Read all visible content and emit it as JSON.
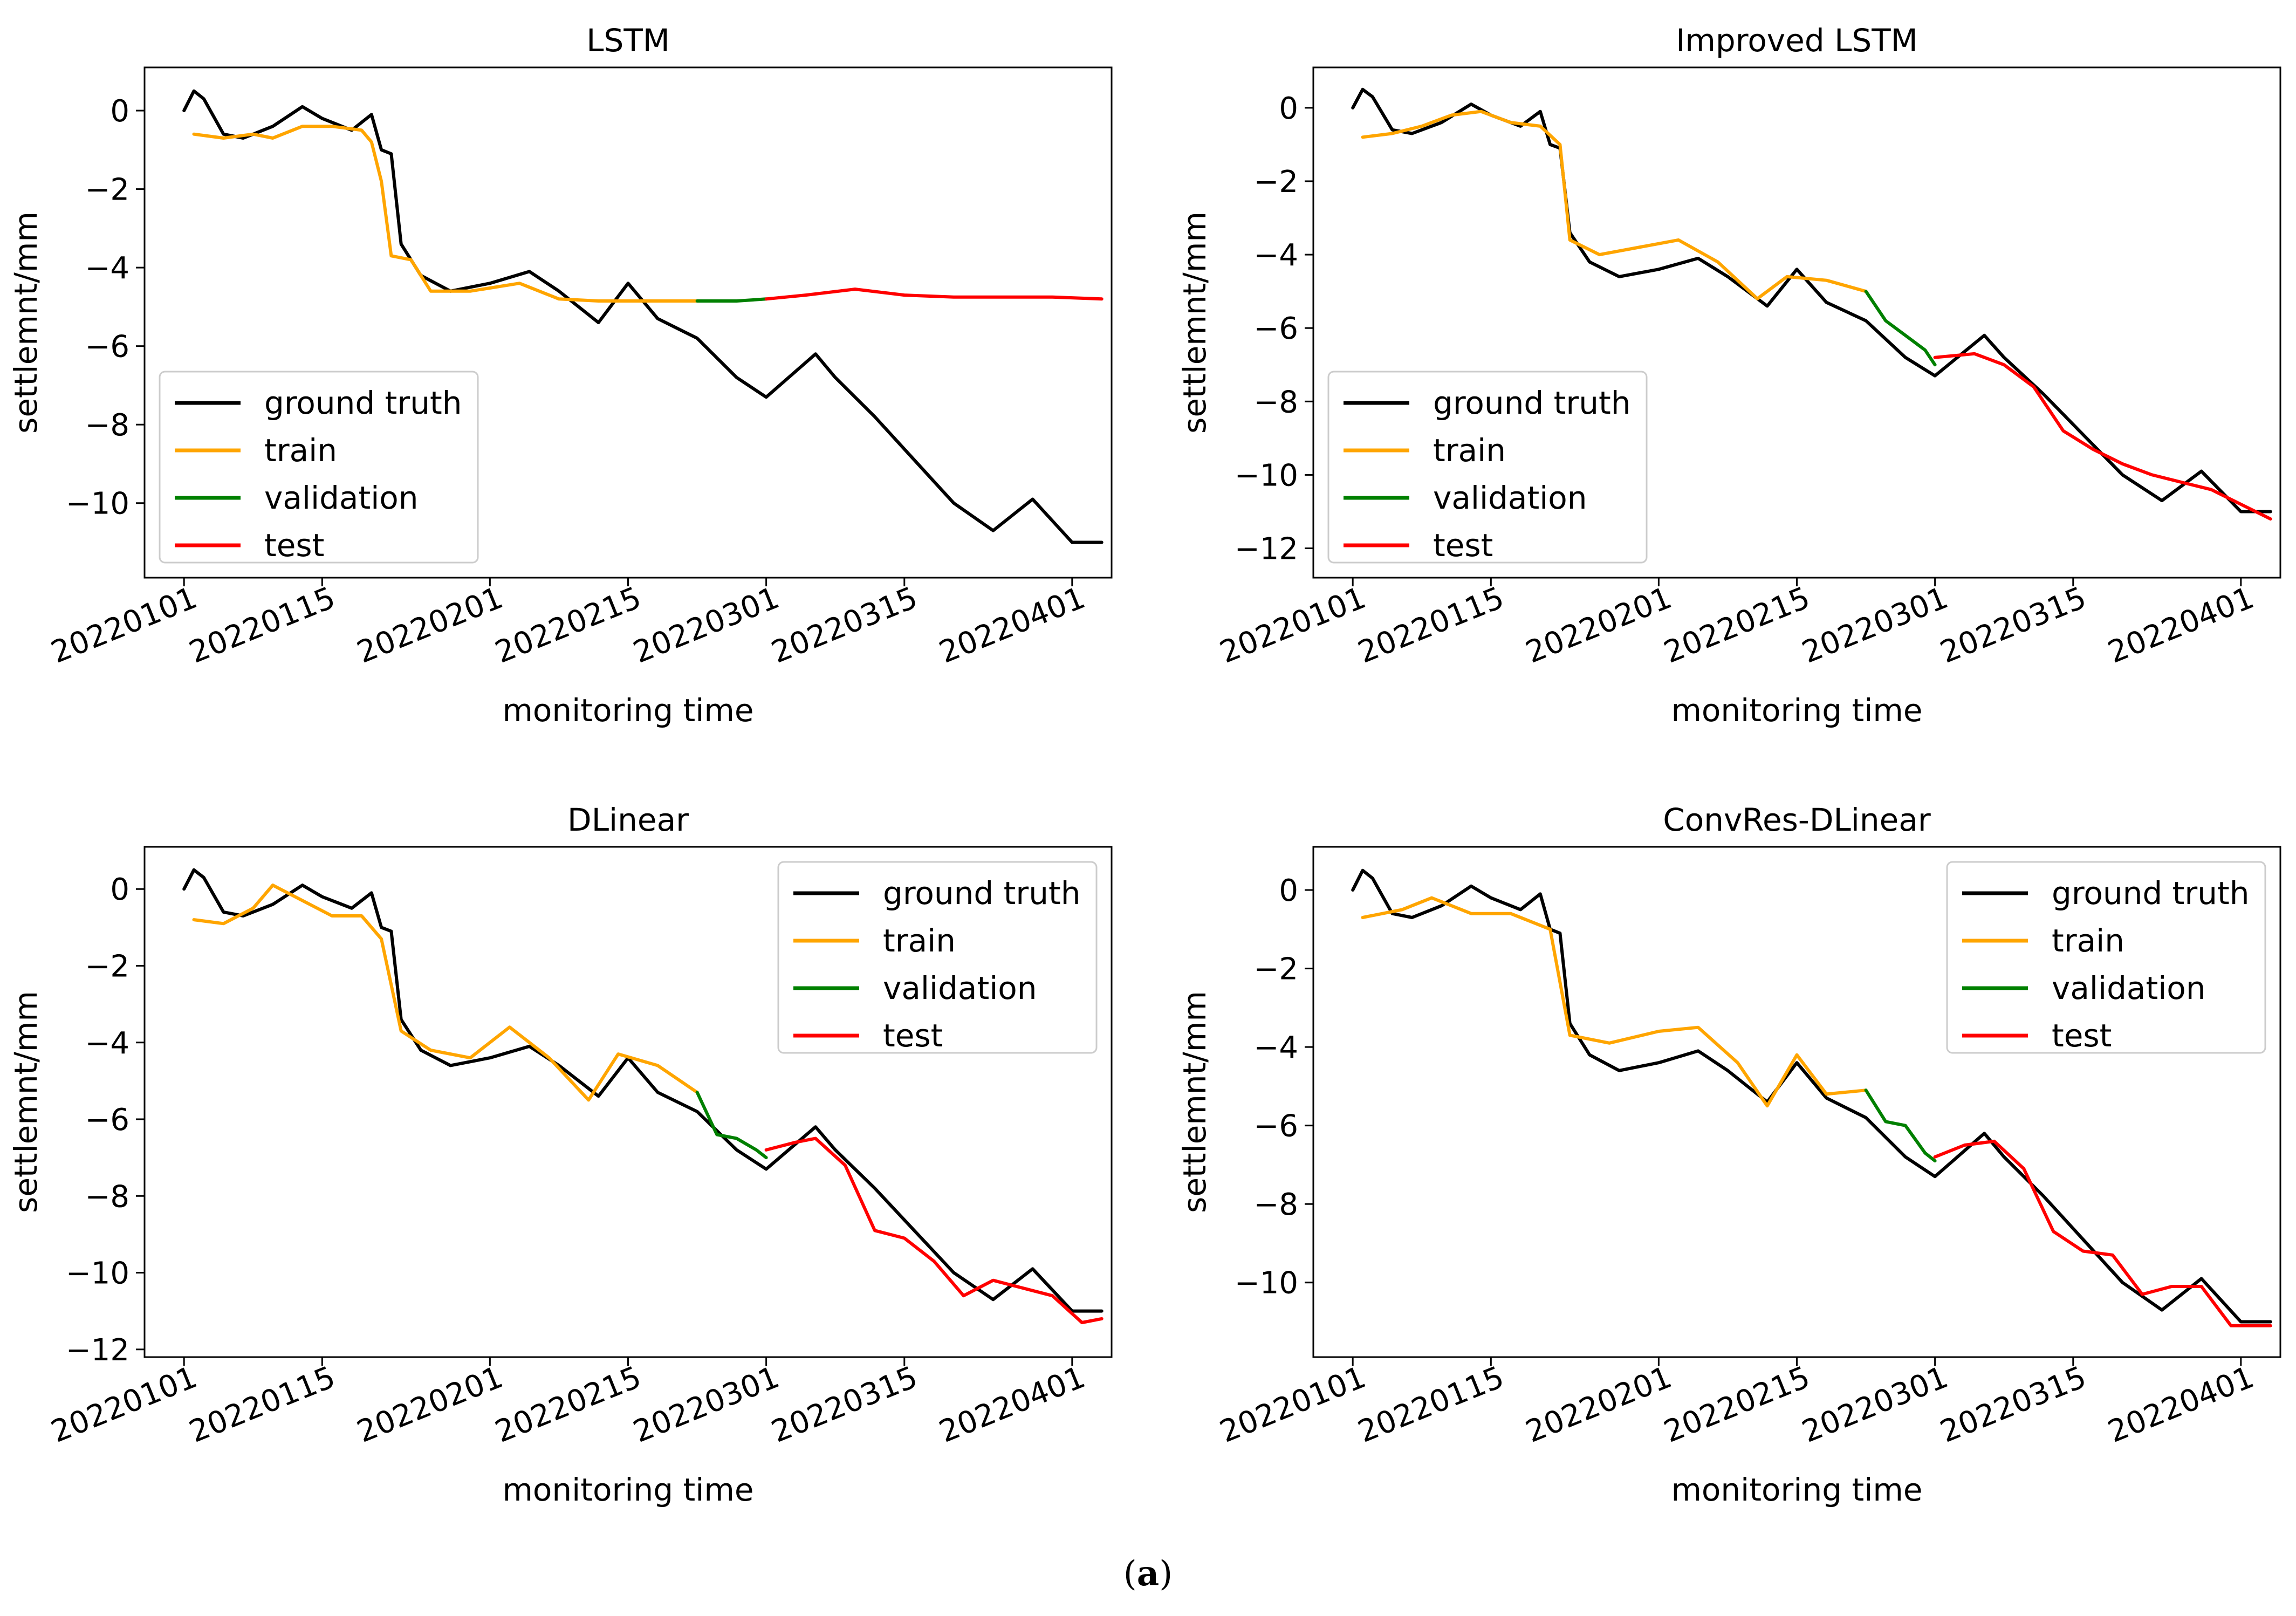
{
  "figure": {
    "caption_open": "(",
    "caption_label": "a",
    "caption_close": ")"
  },
  "chart_data": [
    {
      "type": "line",
      "title": "LSTM",
      "xlabel": "monitoring time",
      "ylabel": "settlemnt/mm",
      "x_tick_labels": [
        "20220101",
        "20220115",
        "20220201",
        "20220215",
        "20220301",
        "20220315",
        "20220401"
      ],
      "x_tick_dates": [
        "2022-01-01",
        "2022-01-15",
        "2022-02-01",
        "2022-02-15",
        "2022-03-01",
        "2022-03-15",
        "2022-04-01"
      ],
      "xlim": [
        "2021-12-28",
        "2022-04-05"
      ],
      "ylim": [
        -11.9,
        1.1
      ],
      "y_ticks": [
        0,
        -2,
        -4,
        -6,
        -8,
        -10
      ],
      "legend_position": "lower-left",
      "series": [
        {
          "name": "ground truth",
          "color": "#000000",
          "x": [
            "2022-01-01",
            "2022-01-02",
            "2022-01-03",
            "2022-01-05",
            "2022-01-07",
            "2022-01-10",
            "2022-01-13",
            "2022-01-15",
            "2022-01-18",
            "2022-01-20",
            "2022-01-21",
            "2022-01-22",
            "2022-01-23",
            "2022-01-25",
            "2022-01-28",
            "2022-02-01",
            "2022-02-05",
            "2022-02-08",
            "2022-02-12",
            "2022-02-15",
            "2022-02-18",
            "2022-02-22",
            "2022-02-26",
            "2022-03-01",
            "2022-03-06",
            "2022-03-08",
            "2022-03-12",
            "2022-03-16",
            "2022-03-20",
            "2022-03-24",
            "2022-03-28",
            "2022-04-01",
            "2022-04-04"
          ],
          "y": [
            0,
            0.5,
            0.3,
            -0.6,
            -0.7,
            -0.4,
            0.1,
            -0.2,
            -0.5,
            -0.1,
            -1.0,
            -1.1,
            -3.4,
            -4.2,
            -4.6,
            -4.4,
            -4.1,
            -4.6,
            -5.4,
            -4.4,
            -5.3,
            -5.8,
            -6.8,
            -7.3,
            -6.2,
            -6.8,
            -7.8,
            -8.9,
            -10.0,
            -10.7,
            -9.9,
            -11.0,
            -11.0
          ]
        },
        {
          "name": "train",
          "color": "#ffa500",
          "x": [
            "2022-01-02",
            "2022-01-05",
            "2022-01-08",
            "2022-01-10",
            "2022-01-13",
            "2022-01-16",
            "2022-01-19",
            "2022-01-20",
            "2022-01-21",
            "2022-01-22",
            "2022-01-24",
            "2022-01-26",
            "2022-01-30",
            "2022-02-04",
            "2022-02-08",
            "2022-02-12",
            "2022-02-18",
            "2022-02-22"
          ],
          "y": [
            -0.6,
            -0.7,
            -0.6,
            -0.7,
            -0.4,
            -0.4,
            -0.5,
            -0.8,
            -1.8,
            -3.7,
            -3.8,
            -4.6,
            -4.6,
            -4.4,
            -4.8,
            -4.85,
            -4.85,
            -4.85
          ]
        },
        {
          "name": "validation",
          "color": "#008000",
          "x": [
            "2022-02-22",
            "2022-02-26",
            "2022-03-01"
          ],
          "y": [
            -4.85,
            -4.85,
            -4.8
          ]
        },
        {
          "name": "test",
          "color": "#ff0000",
          "x": [
            "2022-03-01",
            "2022-03-05",
            "2022-03-10",
            "2022-03-15",
            "2022-03-20",
            "2022-03-25",
            "2022-03-30",
            "2022-04-04"
          ],
          "y": [
            -4.8,
            -4.7,
            -4.55,
            -4.7,
            -4.75,
            -4.75,
            -4.75,
            -4.8
          ]
        }
      ]
    },
    {
      "type": "line",
      "title": "Improved LSTM",
      "xlabel": "monitoring time",
      "ylabel": "settlemnt/mm",
      "x_tick_labels": [
        "20220101",
        "20220115",
        "20220201",
        "20220215",
        "20220301",
        "20220315",
        "20220401"
      ],
      "x_tick_dates": [
        "2022-01-01",
        "2022-01-15",
        "2022-02-01",
        "2022-02-15",
        "2022-03-01",
        "2022-03-15",
        "2022-04-01"
      ],
      "xlim": [
        "2021-12-28",
        "2022-04-05"
      ],
      "ylim": [
        -12.8,
        1.1
      ],
      "y_ticks": [
        0,
        -2,
        -4,
        -6,
        -8,
        -10,
        -12
      ],
      "legend_position": "lower-left",
      "series": [
        {
          "name": "ground truth",
          "color": "#000000",
          "x": [
            "2022-01-01",
            "2022-01-02",
            "2022-01-03",
            "2022-01-05",
            "2022-01-07",
            "2022-01-10",
            "2022-01-13",
            "2022-01-15",
            "2022-01-18",
            "2022-01-20",
            "2022-01-21",
            "2022-01-22",
            "2022-01-23",
            "2022-01-25",
            "2022-01-28",
            "2022-02-01",
            "2022-02-05",
            "2022-02-08",
            "2022-02-12",
            "2022-02-15",
            "2022-02-18",
            "2022-02-22",
            "2022-02-26",
            "2022-03-01",
            "2022-03-06",
            "2022-03-08",
            "2022-03-12",
            "2022-03-16",
            "2022-03-20",
            "2022-03-24",
            "2022-03-28",
            "2022-04-01",
            "2022-04-04"
          ],
          "y": [
            0,
            0.5,
            0.3,
            -0.6,
            -0.7,
            -0.4,
            0.1,
            -0.2,
            -0.5,
            -0.1,
            -1.0,
            -1.1,
            -3.4,
            -4.2,
            -4.6,
            -4.4,
            -4.1,
            -4.6,
            -5.4,
            -4.4,
            -5.3,
            -5.8,
            -6.8,
            -7.3,
            -6.2,
            -6.8,
            -7.8,
            -8.9,
            -10.0,
            -10.7,
            -9.9,
            -11.0,
            -11.0
          ]
        },
        {
          "name": "train",
          "color": "#ffa500",
          "x": [
            "2022-01-02",
            "2022-01-05",
            "2022-01-08",
            "2022-01-11",
            "2022-01-14",
            "2022-01-17",
            "2022-01-20",
            "2022-01-22",
            "2022-01-23",
            "2022-01-26",
            "2022-01-30",
            "2022-02-03",
            "2022-02-07",
            "2022-02-11",
            "2022-02-14",
            "2022-02-18",
            "2022-02-22"
          ],
          "y": [
            -0.8,
            -0.7,
            -0.5,
            -0.2,
            -0.1,
            -0.4,
            -0.5,
            -1.0,
            -3.6,
            -4.0,
            -3.8,
            -3.6,
            -4.2,
            -5.2,
            -4.6,
            -4.7,
            -5.0
          ]
        },
        {
          "name": "validation",
          "color": "#008000",
          "x": [
            "2022-02-22",
            "2022-02-24",
            "2022-02-26",
            "2022-02-28",
            "2022-03-01"
          ],
          "y": [
            -5.0,
            -5.8,
            -6.2,
            -6.6,
            -7.0
          ]
        },
        {
          "name": "test",
          "color": "#ff0000",
          "x": [
            "2022-03-01",
            "2022-03-05",
            "2022-03-08",
            "2022-03-11",
            "2022-03-14",
            "2022-03-17",
            "2022-03-20",
            "2022-03-23",
            "2022-03-26",
            "2022-03-29",
            "2022-04-01",
            "2022-04-04"
          ],
          "y": [
            -6.8,
            -6.7,
            -7.0,
            -7.6,
            -8.8,
            -9.3,
            -9.7,
            -10.0,
            -10.2,
            -10.4,
            -10.8,
            -11.2
          ]
        }
      ]
    },
    {
      "type": "line",
      "title": "DLinear",
      "xlabel": "monitoring time",
      "ylabel": "settlemnt/mm",
      "x_tick_labels": [
        "20220101",
        "20220115",
        "20220201",
        "20220215",
        "20220301",
        "20220315",
        "20220401"
      ],
      "x_tick_dates": [
        "2022-01-01",
        "2022-01-15",
        "2022-02-01",
        "2022-02-15",
        "2022-03-01",
        "2022-03-15",
        "2022-04-01"
      ],
      "xlim": [
        "2021-12-28",
        "2022-04-05"
      ],
      "ylim": [
        -12.2,
        1.1
      ],
      "y_ticks": [
        0,
        -2,
        -4,
        -6,
        -8,
        -10,
        -12
      ],
      "legend_position": "upper-right",
      "series": [
        {
          "name": "ground truth",
          "color": "#000000",
          "x": [
            "2022-01-01",
            "2022-01-02",
            "2022-01-03",
            "2022-01-05",
            "2022-01-07",
            "2022-01-10",
            "2022-01-13",
            "2022-01-15",
            "2022-01-18",
            "2022-01-20",
            "2022-01-21",
            "2022-01-22",
            "2022-01-23",
            "2022-01-25",
            "2022-01-28",
            "2022-02-01",
            "2022-02-05",
            "2022-02-08",
            "2022-02-12",
            "2022-02-15",
            "2022-02-18",
            "2022-02-22",
            "2022-02-26",
            "2022-03-01",
            "2022-03-06",
            "2022-03-08",
            "2022-03-12",
            "2022-03-16",
            "2022-03-20",
            "2022-03-24",
            "2022-03-28",
            "2022-04-01",
            "2022-04-04"
          ],
          "y": [
            0,
            0.5,
            0.3,
            -0.6,
            -0.7,
            -0.4,
            0.1,
            -0.2,
            -0.5,
            -0.1,
            -1.0,
            -1.1,
            -3.4,
            -4.2,
            -4.6,
            -4.4,
            -4.1,
            -4.6,
            -5.4,
            -4.4,
            -5.3,
            -5.8,
            -6.8,
            -7.3,
            -6.2,
            -6.8,
            -7.8,
            -8.9,
            -10.0,
            -10.7,
            -9.9,
            -11.0,
            -11.0
          ]
        },
        {
          "name": "train",
          "color": "#ffa500",
          "x": [
            "2022-01-02",
            "2022-01-05",
            "2022-01-08",
            "2022-01-10",
            "2022-01-13",
            "2022-01-16",
            "2022-01-19",
            "2022-01-21",
            "2022-01-23",
            "2022-01-26",
            "2022-01-30",
            "2022-02-03",
            "2022-02-07",
            "2022-02-11",
            "2022-02-14",
            "2022-02-18",
            "2022-02-22"
          ],
          "y": [
            -0.8,
            -0.9,
            -0.5,
            0.1,
            -0.3,
            -0.7,
            -0.7,
            -1.3,
            -3.7,
            -4.2,
            -4.4,
            -3.6,
            -4.4,
            -5.5,
            -4.3,
            -4.6,
            -5.3
          ]
        },
        {
          "name": "validation",
          "color": "#008000",
          "x": [
            "2022-02-22",
            "2022-02-24",
            "2022-02-26",
            "2022-02-28",
            "2022-03-01"
          ],
          "y": [
            -5.3,
            -6.4,
            -6.5,
            -6.8,
            -7.0
          ]
        },
        {
          "name": "test",
          "color": "#ff0000",
          "x": [
            "2022-03-01",
            "2022-03-04",
            "2022-03-06",
            "2022-03-09",
            "2022-03-12",
            "2022-03-15",
            "2022-03-18",
            "2022-03-21",
            "2022-03-24",
            "2022-03-27",
            "2022-03-30",
            "2022-04-02",
            "2022-04-04"
          ],
          "y": [
            -6.8,
            -6.6,
            -6.5,
            -7.2,
            -8.9,
            -9.1,
            -9.7,
            -10.6,
            -10.2,
            -10.4,
            -10.6,
            -11.3,
            -11.2
          ]
        }
      ]
    },
    {
      "type": "line",
      "title": "ConvRes-DLinear",
      "xlabel": "monitoring time",
      "ylabel": "settlemnt/mm",
      "x_tick_labels": [
        "20220101",
        "20220115",
        "20220201",
        "20220215",
        "20220301",
        "20220315",
        "20220401"
      ],
      "x_tick_dates": [
        "2022-01-01",
        "2022-01-15",
        "2022-02-01",
        "2022-02-15",
        "2022-03-01",
        "2022-03-15",
        "2022-04-01"
      ],
      "xlim": [
        "2021-12-28",
        "2022-04-05"
      ],
      "ylim": [
        -11.9,
        1.1
      ],
      "y_ticks": [
        0,
        -2,
        -4,
        -6,
        -8,
        -10
      ],
      "legend_position": "upper-right",
      "series": [
        {
          "name": "ground truth",
          "color": "#000000",
          "x": [
            "2022-01-01",
            "2022-01-02",
            "2022-01-03",
            "2022-01-05",
            "2022-01-07",
            "2022-01-10",
            "2022-01-13",
            "2022-01-15",
            "2022-01-18",
            "2022-01-20",
            "2022-01-21",
            "2022-01-22",
            "2022-01-23",
            "2022-01-25",
            "2022-01-28",
            "2022-02-01",
            "2022-02-05",
            "2022-02-08",
            "2022-02-12",
            "2022-02-15",
            "2022-02-18",
            "2022-02-22",
            "2022-02-26",
            "2022-03-01",
            "2022-03-06",
            "2022-03-08",
            "2022-03-12",
            "2022-03-16",
            "2022-03-20",
            "2022-03-24",
            "2022-03-28",
            "2022-04-01",
            "2022-04-04"
          ],
          "y": [
            0,
            0.5,
            0.3,
            -0.6,
            -0.7,
            -0.4,
            0.1,
            -0.2,
            -0.5,
            -0.1,
            -1.0,
            -1.1,
            -3.4,
            -4.2,
            -4.6,
            -4.4,
            -4.1,
            -4.6,
            -5.4,
            -4.4,
            -5.3,
            -5.8,
            -6.8,
            -7.3,
            -6.2,
            -6.8,
            -7.8,
            -8.9,
            -10.0,
            -10.7,
            -9.9,
            -11.0,
            -11.0
          ]
        },
        {
          "name": "train",
          "color": "#ffa500",
          "x": [
            "2022-01-02",
            "2022-01-06",
            "2022-01-09",
            "2022-01-13",
            "2022-01-17",
            "2022-01-21",
            "2022-01-23",
            "2022-01-27",
            "2022-02-01",
            "2022-02-05",
            "2022-02-09",
            "2022-02-12",
            "2022-02-15",
            "2022-02-18",
            "2022-02-22"
          ],
          "y": [
            -0.7,
            -0.5,
            -0.2,
            -0.6,
            -0.6,
            -1.0,
            -3.7,
            -3.9,
            -3.6,
            -3.5,
            -4.4,
            -5.5,
            -4.2,
            -5.2,
            -5.1
          ]
        },
        {
          "name": "validation",
          "color": "#008000",
          "x": [
            "2022-02-22",
            "2022-02-24",
            "2022-02-26",
            "2022-02-28",
            "2022-03-01"
          ],
          "y": [
            -5.1,
            -5.9,
            -6.0,
            -6.7,
            -6.9
          ]
        },
        {
          "name": "test",
          "color": "#ff0000",
          "x": [
            "2022-03-01",
            "2022-03-04",
            "2022-03-07",
            "2022-03-10",
            "2022-03-13",
            "2022-03-16",
            "2022-03-19",
            "2022-03-22",
            "2022-03-25",
            "2022-03-28",
            "2022-03-31",
            "2022-04-04"
          ],
          "y": [
            -6.8,
            -6.5,
            -6.4,
            -7.1,
            -8.7,
            -9.2,
            -9.3,
            -10.3,
            -10.1,
            -10.1,
            -11.1,
            -11.1
          ]
        }
      ]
    }
  ]
}
